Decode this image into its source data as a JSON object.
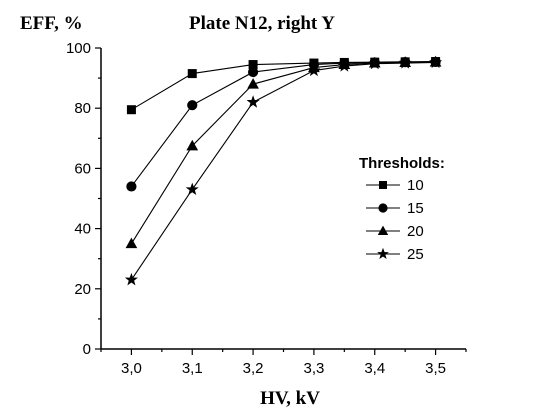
{
  "chart_data": {
    "type": "line",
    "title": "Plate N12, right Y",
    "ylabel": "EFF, %",
    "xlabel": "HV, kV",
    "x_ticks": [
      "3,0",
      "3,1",
      "3,2",
      "3,3",
      "3,4",
      "3,5"
    ],
    "y_ticks": [
      "0",
      "20",
      "40",
      "60",
      "80",
      "100"
    ],
    "xlim": [
      2.95,
      3.55
    ],
    "ylim": [
      0,
      100
    ],
    "grid": false,
    "legend_title": "Thresholds:",
    "legend_position": "right",
    "series": [
      {
        "name": "10",
        "marker": "square",
        "x": [
          3.0,
          3.1,
          3.2,
          3.3,
          3.35,
          3.4,
          3.45,
          3.5
        ],
        "y": [
          79.5,
          91.5,
          94.5,
          95.0,
          95.2,
          95.3,
          95.4,
          95.5
        ]
      },
      {
        "name": "15",
        "marker": "circle",
        "x": [
          3.0,
          3.1,
          3.2,
          3.3,
          3.35,
          3.4,
          3.45,
          3.5
        ],
        "y": [
          54,
          81,
          92,
          94.5,
          95.0,
          95.2,
          95.3,
          95.4
        ]
      },
      {
        "name": "20",
        "marker": "triangle",
        "x": [
          3.0,
          3.1,
          3.2,
          3.3,
          3.35,
          3.4,
          3.45,
          3.5
        ],
        "y": [
          35,
          67.5,
          88,
          93.5,
          94.5,
          95.0,
          95.2,
          95.3
        ]
      },
      {
        "name": "25",
        "marker": "star",
        "x": [
          3.0,
          3.1,
          3.2,
          3.3,
          3.35,
          3.4,
          3.45,
          3.5
        ],
        "y": [
          23,
          53,
          82,
          92.5,
          94.0,
          94.8,
          95.0,
          95.2
        ]
      }
    ]
  }
}
